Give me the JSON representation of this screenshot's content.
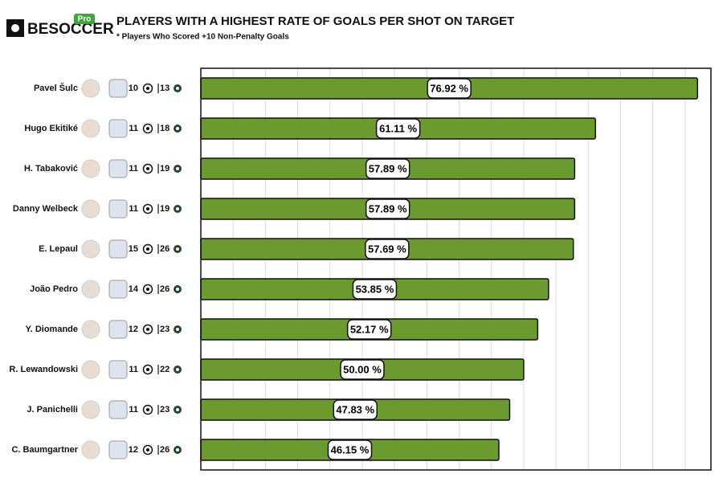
{
  "brand": {
    "name": "BESOCCER",
    "badge": "Pro"
  },
  "chart_data": {
    "type": "bar",
    "title": "PLAYERS WITH A HIGHEST RATE OF GOALS PER SHOT ON TARGET",
    "subtitle": "* Players Who Scored +10 Non-Penalty Goals",
    "categories": [
      "Pavel Šulc",
      "Hugo Ekitiké",
      "H. Tabaković",
      "Danny Welbeck",
      "E. Lepaul",
      "João Pedro",
      "Y. Diomande",
      "R. Lewandowski",
      "J. Panichelli",
      "C. Baumgartner"
    ],
    "goals": [
      10,
      11,
      11,
      11,
      15,
      14,
      12,
      11,
      11,
      12
    ],
    "shots": [
      13,
      18,
      19,
      19,
      26,
      26,
      23,
      22,
      23,
      26
    ],
    "values": [
      76.92,
      61.11,
      57.89,
      57.89,
      57.69,
      53.85,
      52.17,
      50.0,
      47.83,
      46.15
    ],
    "value_labels": [
      "76.92 %",
      "61.11 %",
      "57.89 %",
      "57.89 %",
      "57.69 %",
      "53.85 %",
      "52.17 %",
      "50.00 %",
      "47.83 %",
      "46.15 %"
    ],
    "color": "#6b9a2e",
    "xlim": [
      0,
      79
    ],
    "xticks": [
      5,
      10,
      15,
      20,
      25,
      30,
      35,
      40,
      45,
      50,
      55,
      60,
      65,
      70,
      75
    ],
    "grid": true
  }
}
